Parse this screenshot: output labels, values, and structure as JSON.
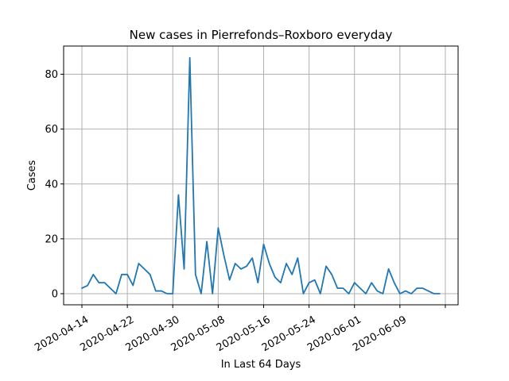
{
  "chart_data": {
    "type": "line",
    "title": "New cases in Pierrefonds–Roxboro everyday",
    "xlabel": "In Last 64 Days",
    "ylabel": "Cases",
    "x_start": "2020-04-14",
    "x_tick_labels": [
      "2020-04-14",
      "2020-04-22",
      "2020-04-30",
      "2020-05-08",
      "2020-05-16",
      "2020-05-24",
      "2020-06-01",
      "2020-06-09"
    ],
    "y_ticks": [
      0,
      20,
      40,
      60,
      80
    ],
    "ylim": [
      -4,
      90
    ],
    "grid": true,
    "series": [
      {
        "color": "#1f77b4",
        "values": [
          2,
          3,
          7,
          4,
          4,
          2,
          0,
          7,
          7,
          3,
          11,
          9,
          7,
          1,
          1,
          0,
          0,
          36,
          9,
          86,
          7,
          0,
          19,
          0,
          24,
          14,
          5,
          11,
          9,
          10,
          13,
          4,
          18,
          11,
          6,
          4,
          11,
          7,
          13,
          0,
          4,
          5,
          0,
          10,
          7,
          2,
          2,
          0,
          4,
          2,
          0,
          4,
          1,
          0,
          9,
          4,
          0,
          1,
          0,
          2,
          2,
          1,
          0,
          0
        ]
      }
    ]
  }
}
